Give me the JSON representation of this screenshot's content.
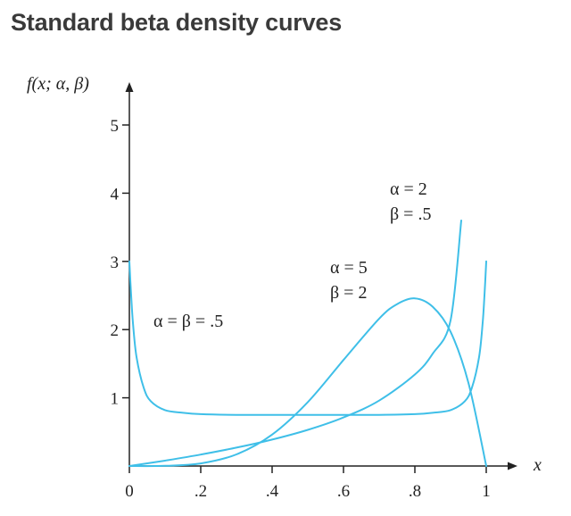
{
  "page_title": "Standard beta density curves",
  "chart_data": {
    "type": "line",
    "title": "Standard beta density curves",
    "xlabel": "x",
    "ylabel": "f(x; α, β)",
    "xlim": [
      0,
      1
    ],
    "ylim": [
      0,
      5
    ],
    "x_ticks": [
      {
        "value": 0,
        "label": "0"
      },
      {
        "value": 0.2,
        "label": ".2"
      },
      {
        "value": 0.4,
        "label": ".4"
      },
      {
        "value": 0.6,
        "label": ".6"
      },
      {
        "value": 0.8,
        "label": ".8"
      },
      {
        "value": 1,
        "label": "1"
      }
    ],
    "y_ticks": [
      {
        "value": 1,
        "label": "1"
      },
      {
        "value": 2,
        "label": "2"
      },
      {
        "value": 3,
        "label": "3"
      },
      {
        "value": 4,
        "label": "4"
      },
      {
        "value": 5,
        "label": "5"
      }
    ],
    "grid": false,
    "line_color": "#3fbfe8",
    "series": [
      {
        "label_lines": [
          "α = β = .5"
        ],
        "x": [
          0,
          0.005,
          0.01,
          0.02,
          0.04,
          0.06,
          0.1,
          0.15,
          0.2,
          0.3,
          0.4,
          0.5,
          0.6,
          0.7,
          0.8,
          0.85,
          0.9,
          0.94,
          0.96,
          0.98,
          0.99,
          0.995,
          1
        ],
        "y": [
          3,
          2.5,
          2.1,
          1.6,
          1.15,
          0.95,
          0.82,
          0.78,
          0.76,
          0.75,
          0.75,
          0.75,
          0.75,
          0.75,
          0.76,
          0.78,
          0.82,
          0.95,
          1.15,
          1.6,
          2.1,
          2.5,
          3
        ]
      },
      {
        "label_lines": [
          "α = 5",
          "β = 2"
        ],
        "x": [
          0,
          0.1,
          0.2,
          0.3,
          0.4,
          0.5,
          0.6,
          0.7,
          0.75,
          0.8,
          0.85,
          0.9,
          0.95,
          1
        ],
        "y": [
          0,
          0.0027,
          0.0384,
          0.17,
          0.4608,
          0.9375,
          1.5552,
          2.1609,
          2.373,
          2.4576,
          2.3353,
          1.9683,
          1.2217,
          0
        ]
      },
      {
        "label_lines": [
          "α = 2",
          "β = .5"
        ],
        "x": [
          0,
          0.1,
          0.2,
          0.3,
          0.4,
          0.5,
          0.6,
          0.7,
          0.8,
          0.85,
          0.9,
          0.93
        ],
        "y": [
          0,
          0.079,
          0.168,
          0.269,
          0.387,
          0.53,
          0.712,
          0.959,
          1.342,
          1.646,
          2.135,
          3.6
        ]
      }
    ]
  }
}
